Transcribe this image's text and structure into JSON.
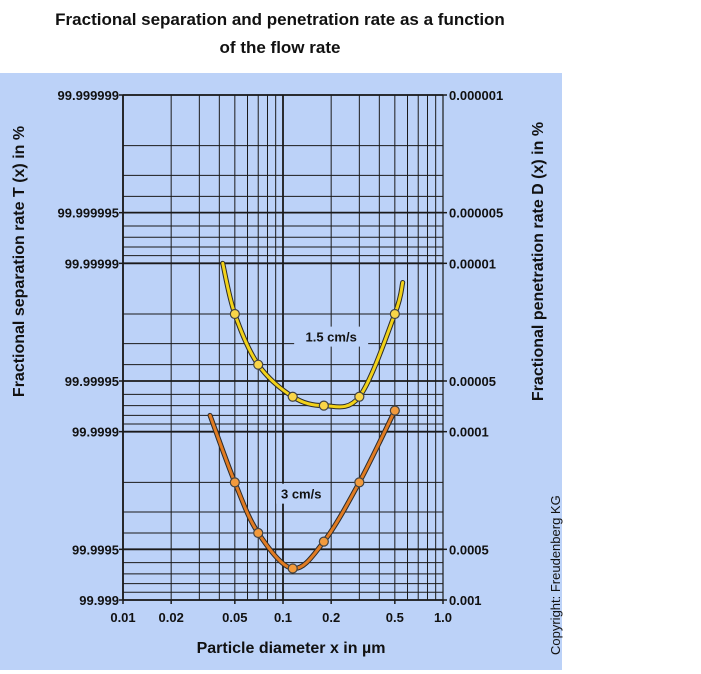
{
  "title": {
    "line1": "Fractional separation and penetration rate as a function",
    "line2": "of the flow rate"
  },
  "copyright": "Copyright: Freudenberg KG",
  "colors": {
    "panel_bg": "#bcd2f8",
    "grid": "#1a1a1a",
    "series_1_5": "#f2d21a",
    "series_3": "#e07b22",
    "marker_1_5": "#f9d548",
    "marker_3": "#f29a3c"
  },
  "chart_data": {
    "type": "line",
    "title": "Fractional separation and penetration rate as a function of the flow rate",
    "xlabel": "Particle diameter x in µm",
    "ylabel_left": "Fractional separation rate T (x) in  %",
    "ylabel_right": "Fractional penetration rate D (x) in  %",
    "x_scale": "log",
    "xlim": [
      0.01,
      1.0
    ],
    "x_ticks": [
      "0.01",
      "0.02",
      "0.05",
      "0.1",
      "0.2",
      "0.5",
      "1.0"
    ],
    "y_scale": "log (penetration)",
    "ylim_penetration_percent": [
      1e-06,
      0.001
    ],
    "y_ticks_left": [
      "99.999999",
      "99.999995",
      "99.99999",
      "99.99995",
      "99.9999",
      "99.9995",
      "99.999"
    ],
    "y_ticks_right": [
      "0.000001",
      "0.000005",
      "0.00001",
      "0.00005",
      "0.0001",
      "0.0005",
      "0.001"
    ],
    "grid": true,
    "series": [
      {
        "name": "1.5 cm/s",
        "x": [
          0.042,
          0.05,
          0.07,
          0.115,
          0.18,
          0.3,
          0.5,
          0.56
        ],
        "penetration": [
          1e-05,
          2e-05,
          4e-05,
          6.2e-05,
          7e-05,
          6.2e-05,
          2e-05,
          1.3e-05
        ]
      },
      {
        "name": "3 cm/s",
        "x": [
          0.035,
          0.05,
          0.07,
          0.115,
          0.18,
          0.3,
          0.5
        ],
        "penetration": [
          8e-05,
          0.0002,
          0.0004,
          0.00065,
          0.00045,
          0.0002,
          7.5e-05
        ]
      }
    ],
    "marker_points": [
      {
        "series": "1.5 cm/s",
        "x": [
          0.05,
          0.07,
          0.115,
          0.18,
          0.3,
          0.5
        ]
      },
      {
        "series": "3 cm/s",
        "x": [
          0.05,
          0.07,
          0.115,
          0.18,
          0.3,
          0.5
        ]
      }
    ]
  }
}
